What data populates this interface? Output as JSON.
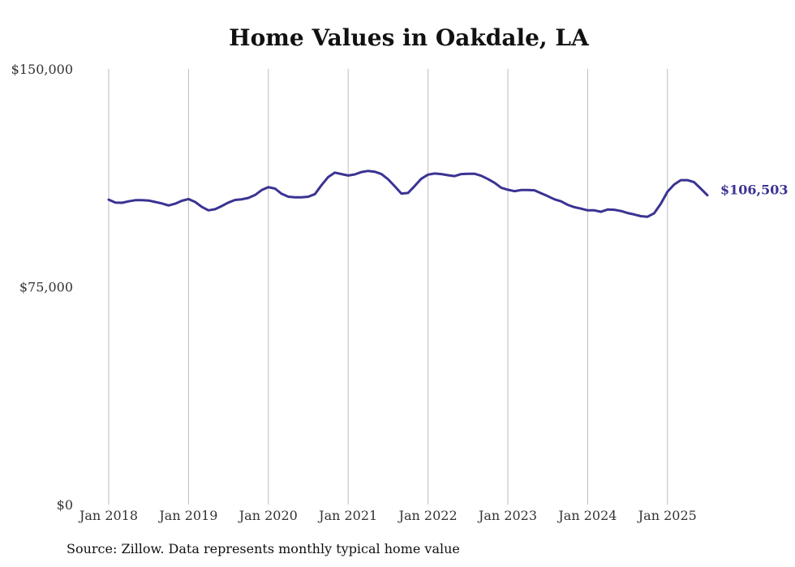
{
  "chart_data": {
    "type": "line",
    "title": "Home Values in Oakdale, LA",
    "xlabel": "",
    "ylabel": "",
    "ylim": [
      0,
      150000
    ],
    "y_ticks": [
      "$0",
      "$75,000",
      "$150,000"
    ],
    "y_tick_values": [
      0,
      75000,
      150000
    ],
    "x_ticks": [
      "Jan 2018",
      "Jan 2019",
      "Jan 2020",
      "Jan 2021",
      "Jan 2022",
      "Jan 2023",
      "Jan 2024",
      "Jan 2025"
    ],
    "grid": "vertical",
    "end_label": "$106,503",
    "line_color": "#3a3393",
    "series": [
      {
        "x": [
          "2018-01",
          "2018-02",
          "2018-03",
          "2018-04",
          "2018-05",
          "2018-06",
          "2018-07",
          "2018-08",
          "2018-09",
          "2018-10",
          "2018-11",
          "2018-12",
          "2019-01",
          "2019-02",
          "2019-03",
          "2019-04",
          "2019-05",
          "2019-06",
          "2019-07",
          "2019-08",
          "2019-09",
          "2019-10",
          "2019-11",
          "2019-12",
          "2020-01",
          "2020-02",
          "2020-03",
          "2020-04",
          "2020-05",
          "2020-06",
          "2020-07",
          "2020-08",
          "2020-09",
          "2020-10",
          "2020-11",
          "2020-12",
          "2021-01",
          "2021-02",
          "2021-03",
          "2021-04",
          "2021-05",
          "2021-06",
          "2021-07",
          "2021-08",
          "2021-09",
          "2021-10",
          "2021-11",
          "2021-12",
          "2022-01",
          "2022-02",
          "2022-03",
          "2022-04",
          "2022-05",
          "2022-06",
          "2022-07",
          "2022-08",
          "2022-09",
          "2022-10",
          "2022-11",
          "2022-12",
          "2023-01",
          "2023-02",
          "2023-03",
          "2023-04",
          "2023-05",
          "2023-06",
          "2023-07",
          "2023-08",
          "2023-09",
          "2023-10",
          "2023-11",
          "2023-12",
          "2024-01",
          "2024-02",
          "2024-03",
          "2024-04",
          "2024-05",
          "2024-06",
          "2024-07",
          "2024-08",
          "2024-09",
          "2024-10",
          "2024-11",
          "2024-12",
          "2025-01",
          "2025-02",
          "2025-03",
          "2025-04",
          "2025-05",
          "2025-06",
          "2025-07"
        ],
        "values": [
          105000,
          104000,
          103900,
          104400,
          104800,
          104800,
          104700,
          104200,
          103700,
          103000,
          103600,
          104600,
          105200,
          104200,
          102500,
          101300,
          101700,
          102800,
          104000,
          104900,
          105100,
          105600,
          106600,
          108300,
          109300,
          108800,
          107000,
          106000,
          105800,
          105800,
          106000,
          106900,
          110000,
          112800,
          114300,
          113800,
          113300,
          113700,
          114500,
          114900,
          114600,
          113800,
          112000,
          109600,
          107100,
          107300,
          109700,
          112200,
          113600,
          114000,
          113800,
          113400,
          113100,
          113800,
          113900,
          113900,
          113200,
          112100,
          110800,
          109100,
          108400,
          107900,
          108300,
          108300,
          108200,
          107200,
          106200,
          105100,
          104400,
          103200,
          102400,
          101900,
          101300,
          101300,
          100800,
          101600,
          101500,
          101100,
          100400,
          99900,
          99300,
          99100,
          100300,
          103600,
          107700,
          110200,
          111700,
          111700,
          111000,
          108800,
          106503
        ]
      }
    ]
  },
  "source_note": "Source: Zillow. Data represents monthly typical home value"
}
